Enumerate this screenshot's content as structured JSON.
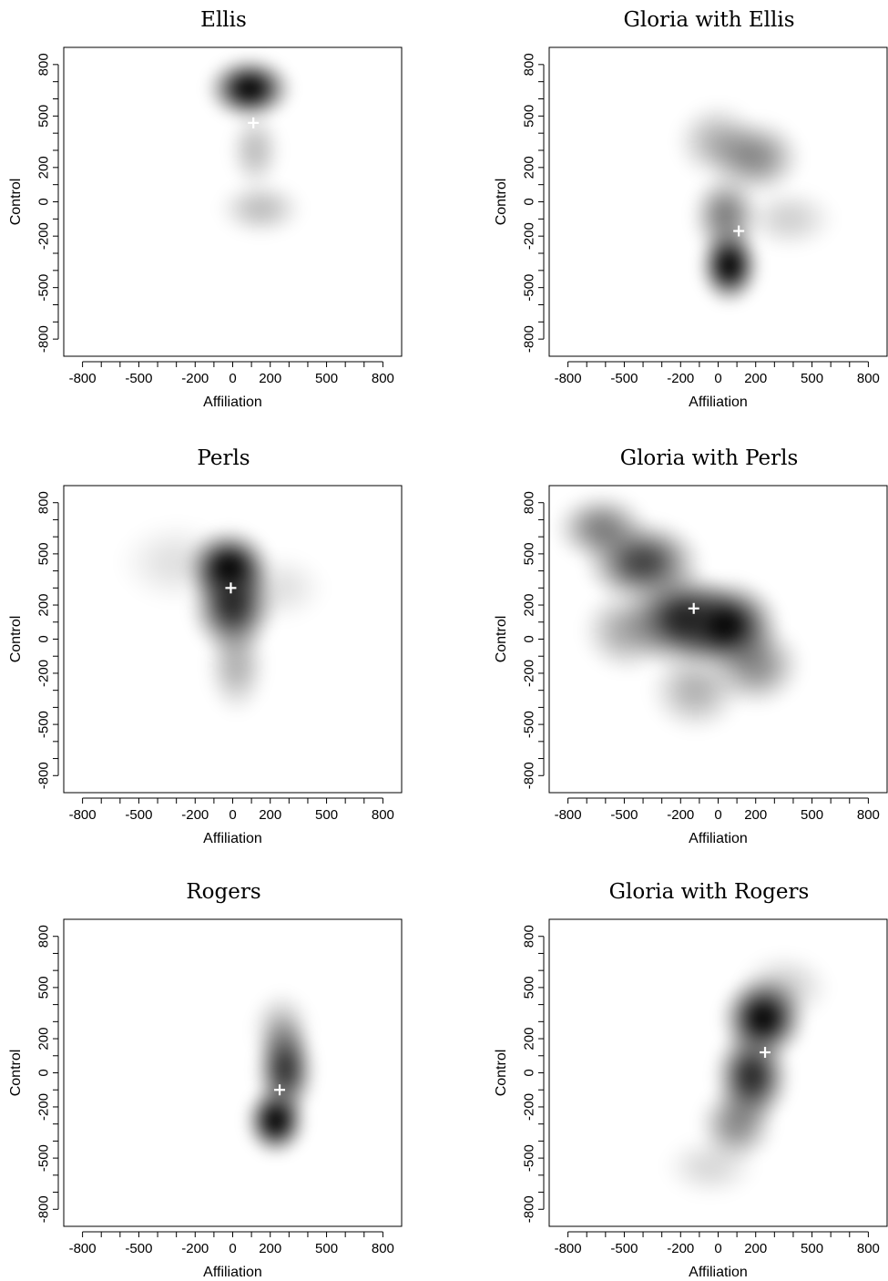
{
  "figure": {
    "description_panels": 6
  },
  "chart_data": [
    {
      "type": "heatmap",
      "title": "Ellis",
      "xlabel": "Affiliation",
      "ylabel": "Control",
      "xlim": [
        -900,
        900
      ],
      "ylim": [
        -900,
        900
      ],
      "xticks": [
        "-800",
        "-500",
        "-200",
        "0",
        "200",
        "500",
        "800"
      ],
      "xtick_values": [
        -800,
        -500,
        -200,
        0,
        200,
        500,
        800
      ],
      "yticks": [
        "-800",
        "-500",
        "-200",
        "0",
        "200",
        "500",
        "800"
      ],
      "ytick_values": [
        -800,
        -500,
        -200,
        0,
        200,
        500,
        800
      ],
      "grid": false,
      "colormap": "white-to-black density",
      "density_blobs": [
        {
          "x": 90,
          "y": 660,
          "sx": 110,
          "sy": 90,
          "intensity": 1.0
        },
        {
          "x": 120,
          "y": 300,
          "sx": 70,
          "sy": 110,
          "intensity": 0.25
        },
        {
          "x": 150,
          "y": -40,
          "sx": 110,
          "sy": 80,
          "intensity": 0.25
        }
      ],
      "mean_marker": {
        "x": 110,
        "y": 460
      }
    },
    {
      "type": "heatmap",
      "title": "Gloria with Ellis",
      "xlabel": "Affiliation",
      "ylabel": "Control",
      "xlim": [
        -900,
        900
      ],
      "ylim": [
        -900,
        900
      ],
      "xticks": [
        "-800",
        "-500",
        "-200",
        "0",
        "200",
        "500",
        "800"
      ],
      "xtick_values": [
        -800,
        -500,
        -200,
        0,
        200,
        500,
        800
      ],
      "yticks": [
        "-800",
        "-500",
        "-200",
        "0",
        "200",
        "500",
        "800"
      ],
      "ytick_values": [
        -800,
        -500,
        -200,
        0,
        200,
        500,
        800
      ],
      "grid": false,
      "colormap": "white-to-black density",
      "density_blobs": [
        {
          "x": 60,
          "y": -370,
          "sx": 80,
          "sy": 110,
          "intensity": 1.0
        },
        {
          "x": 40,
          "y": -80,
          "sx": 90,
          "sy": 120,
          "intensity": 0.5
        },
        {
          "x": 200,
          "y": 260,
          "sx": 120,
          "sy": 110,
          "intensity": 0.45
        },
        {
          "x": 0,
          "y": 350,
          "sx": 110,
          "sy": 110,
          "intensity": 0.3
        },
        {
          "x": 380,
          "y": -100,
          "sx": 120,
          "sy": 90,
          "intensity": 0.18
        }
      ],
      "mean_marker": {
        "x": 110,
        "y": -170
      }
    },
    {
      "type": "heatmap",
      "title": "Perls",
      "xlabel": "Affiliation",
      "ylabel": "Control",
      "xlim": [
        -900,
        900
      ],
      "ylim": [
        -900,
        900
      ],
      "xticks": [
        "-800",
        "-500",
        "-200",
        "0",
        "200",
        "500",
        "800"
      ],
      "xtick_values": [
        -800,
        -500,
        -200,
        0,
        200,
        500,
        800
      ],
      "yticks": [
        "-800",
        "-500",
        "-200",
        "0",
        "200",
        "500",
        "800"
      ],
      "ytick_values": [
        -800,
        -500,
        -200,
        0,
        200,
        500,
        800
      ],
      "grid": false,
      "colormap": "white-to-black density",
      "density_blobs": [
        {
          "x": -20,
          "y": 420,
          "sx": 110,
          "sy": 110,
          "intensity": 1.0
        },
        {
          "x": 0,
          "y": 200,
          "sx": 110,
          "sy": 140,
          "intensity": 0.85
        },
        {
          "x": 20,
          "y": -150,
          "sx": 80,
          "sy": 140,
          "intensity": 0.3
        },
        {
          "x": -300,
          "y": 450,
          "sx": 150,
          "sy": 120,
          "intensity": 0.12
        },
        {
          "x": 250,
          "y": 300,
          "sx": 120,
          "sy": 100,
          "intensity": 0.12
        }
      ],
      "mean_marker": {
        "x": -10,
        "y": 300
      }
    },
    {
      "type": "heatmap",
      "title": "Gloria with Perls",
      "xlabel": "Affiliation",
      "ylabel": "Control",
      "xlim": [
        -900,
        900
      ],
      "ylim": [
        -900,
        900
      ],
      "xticks": [
        "-800",
        "-500",
        "-200",
        "0",
        "200",
        "500",
        "800"
      ],
      "xtick_values": [
        -800,
        -500,
        -200,
        0,
        200,
        500,
        800
      ],
      "yticks": [
        "-800",
        "-500",
        "-200",
        "0",
        "200",
        "500",
        "800"
      ],
      "ytick_values": [
        -800,
        -500,
        -200,
        0,
        200,
        500,
        800
      ],
      "grid": false,
      "colormap": "white-to-black density",
      "density_blobs": [
        {
          "x": 40,
          "y": 80,
          "sx": 140,
          "sy": 130,
          "intensity": 1.0
        },
        {
          "x": -200,
          "y": 120,
          "sx": 140,
          "sy": 140,
          "intensity": 0.85
        },
        {
          "x": -400,
          "y": 450,
          "sx": 150,
          "sy": 120,
          "intensity": 0.75
        },
        {
          "x": -620,
          "y": 650,
          "sx": 120,
          "sy": 100,
          "intensity": 0.5
        },
        {
          "x": -480,
          "y": 50,
          "sx": 120,
          "sy": 120,
          "intensity": 0.35
        },
        {
          "x": 200,
          "y": -150,
          "sx": 120,
          "sy": 120,
          "intensity": 0.45
        },
        {
          "x": -120,
          "y": -300,
          "sx": 120,
          "sy": 120,
          "intensity": 0.3
        }
      ],
      "mean_marker": {
        "x": -130,
        "y": 180
      }
    },
    {
      "type": "heatmap",
      "title": "Rogers",
      "xlabel": "Affiliation",
      "ylabel": "Control",
      "xlim": [
        -900,
        900
      ],
      "ylim": [
        -900,
        900
      ],
      "xticks": [
        "-800",
        "-500",
        "-200",
        "0",
        "200",
        "500",
        "800"
      ],
      "xtick_values": [
        -800,
        -500,
        -200,
        0,
        200,
        500,
        800
      ],
      "yticks": [
        "-800",
        "-500",
        "-200",
        "0",
        "200",
        "500",
        "800"
      ],
      "ytick_values": [
        -800,
        -500,
        -200,
        0,
        200,
        500,
        800
      ],
      "grid": false,
      "colormap": "white-to-black density",
      "density_blobs": [
        {
          "x": 230,
          "y": -280,
          "sx": 80,
          "sy": 100,
          "intensity": 1.0
        },
        {
          "x": 280,
          "y": 20,
          "sx": 80,
          "sy": 140,
          "intensity": 0.8
        },
        {
          "x": 260,
          "y": 250,
          "sx": 80,
          "sy": 110,
          "intensity": 0.3
        }
      ],
      "mean_marker": {
        "x": 250,
        "y": -100
      }
    },
    {
      "type": "heatmap",
      "title": "Gloria with Rogers",
      "xlabel": "Affiliation",
      "ylabel": "Control",
      "xlim": [
        -900,
        900
      ],
      "ylim": [
        -900,
        900
      ],
      "xticks": [
        "-800",
        "-500",
        "-200",
        "0",
        "200",
        "500",
        "800"
      ],
      "xtick_values": [
        -800,
        -500,
        -200,
        0,
        200,
        500,
        800
      ],
      "yticks": [
        "-800",
        "-500",
        "-200",
        "0",
        "200",
        "500",
        "800"
      ],
      "ytick_values": [
        -800,
        -500,
        -200,
        0,
        200,
        500,
        800
      ],
      "grid": false,
      "colormap": "white-to-black density",
      "density_blobs": [
        {
          "x": 240,
          "y": 320,
          "sx": 110,
          "sy": 120,
          "intensity": 1.0
        },
        {
          "x": 180,
          "y": -20,
          "sx": 100,
          "sy": 140,
          "intensity": 0.85
        },
        {
          "x": 100,
          "y": -300,
          "sx": 100,
          "sy": 110,
          "intensity": 0.45
        },
        {
          "x": -40,
          "y": -550,
          "sx": 120,
          "sy": 90,
          "intensity": 0.15
        },
        {
          "x": 350,
          "y": 500,
          "sx": 120,
          "sy": 100,
          "intensity": 0.2
        }
      ],
      "mean_marker": {
        "x": 250,
        "y": 120
      }
    }
  ]
}
